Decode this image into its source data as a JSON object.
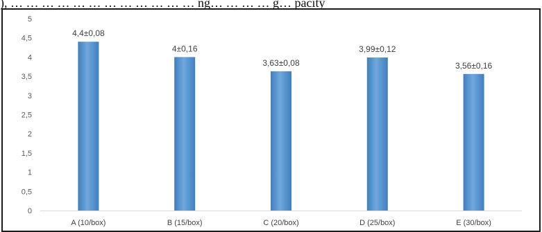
{
  "header": {
    "text": "), … … … … … … … … … … … … ng… … … … g… pacity"
  },
  "chart_data": {
    "type": "bar",
    "categories": [
      "A (10/box)",
      "B (15/box)",
      "C (20/box)",
      "D (25/box)",
      "E (30/box)"
    ],
    "values": [
      4.4,
      4.0,
      3.63,
      3.99,
      3.56
    ],
    "data_labels": [
      "4,4±0,08",
      "4±0,16",
      "3,63±0,08",
      "3,99±0,12",
      "3,56±0,16"
    ],
    "y_ticks": [
      "0",
      "0,5",
      "1",
      "1,5",
      "2",
      "2,5",
      "3",
      "3,5",
      "4",
      "4,5",
      "5"
    ],
    "ylim": [
      0,
      5
    ],
    "grid": false,
    "bar_color": "#5b9bd5",
    "bar_dark": "#3f7fc0"
  }
}
